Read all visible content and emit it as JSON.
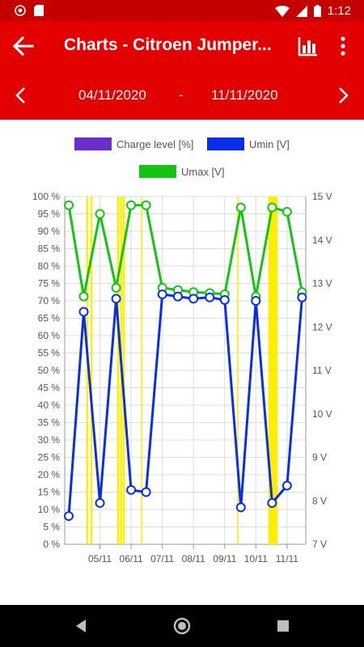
{
  "status_bar": {
    "time": "1:12"
  },
  "app_bar": {
    "title": "Charts - Citroen Jumper..."
  },
  "date_range": {
    "from": "04/11/2020",
    "separator": "-",
    "to": "11/11/2020"
  },
  "colors": {
    "charge": "#6a2fc8",
    "umin": "#0a2ee8",
    "umax": "#14c414",
    "highlight": "#ffee00",
    "appbar": "#e30000"
  },
  "chart_data": {
    "type": "line",
    "legend": [
      {
        "name": "Charge level [%]",
        "color": "#6a2fc8"
      },
      {
        "name": "Umin [V]",
        "color": "#0a2ee8"
      },
      {
        "name": "Umax [V]",
        "color": "#14c414"
      }
    ],
    "legend_position": "top",
    "left_axis": {
      "min": 0,
      "max": 100,
      "step": 5,
      "unit": " %",
      "ticks": [
        "0 %",
        "5 %",
        "10 %",
        "15 %",
        "20 %",
        "25 %",
        "30 %",
        "35 %",
        "40 %",
        "45 %",
        "50 %",
        "55 %",
        "60 %",
        "65 %",
        "70 %",
        "75 %",
        "80 %",
        "85 %",
        "90 %",
        "95 %",
        "100 %"
      ]
    },
    "right_axis": {
      "min": 7,
      "max": 15,
      "step": 1,
      "ticks": [
        "7 V",
        "8 V",
        "9 V",
        "10 V",
        "11 V",
        "12 V",
        "13 V",
        "14 V",
        "15 V"
      ]
    },
    "x_axis": {
      "min": 0,
      "max": 7.6,
      "ticks": [
        {
          "x": 1.0,
          "label": "05/11"
        },
        {
          "x": 2.0,
          "label": "06/11"
        },
        {
          "x": 3.0,
          "label": "07/11"
        },
        {
          "x": 4.0,
          "label": "08/11"
        },
        {
          "x": 5.0,
          "label": "09/11"
        },
        {
          "x": 6.0,
          "label": "10/11"
        },
        {
          "x": 7.0,
          "label": "11/11"
        }
      ]
    },
    "grid": true,
    "series": [
      {
        "name": "Umax [V]",
        "axis": "right",
        "points": [
          [
            0.0,
            14.8
          ],
          [
            0.48,
            12.7
          ],
          [
            1.0,
            14.6
          ],
          [
            1.52,
            12.9
          ],
          [
            2.0,
            14.8
          ],
          [
            2.48,
            14.8
          ],
          [
            3.0,
            12.9
          ],
          [
            3.5,
            12.85
          ],
          [
            4.0,
            12.8
          ],
          [
            4.52,
            12.78
          ],
          [
            5.0,
            12.75
          ],
          [
            5.52,
            14.75
          ],
          [
            6.0,
            12.7
          ],
          [
            6.52,
            14.75
          ],
          [
            7.0,
            14.65
          ],
          [
            7.48,
            12.8
          ]
        ]
      },
      {
        "name": "Umin [V]",
        "axis": "right",
        "points": [
          [
            0.0,
            7.65
          ],
          [
            0.48,
            12.35
          ],
          [
            1.0,
            7.95
          ],
          [
            1.52,
            12.65
          ],
          [
            2.0,
            8.25
          ],
          [
            2.48,
            8.2
          ],
          [
            3.0,
            12.75
          ],
          [
            3.5,
            12.7
          ],
          [
            4.0,
            12.65
          ],
          [
            4.52,
            12.68
          ],
          [
            5.0,
            12.62
          ],
          [
            5.52,
            7.85
          ],
          [
            6.0,
            12.6
          ],
          [
            6.52,
            7.95
          ],
          [
            7.0,
            8.35
          ],
          [
            7.48,
            12.68
          ]
        ]
      }
    ],
    "highlight_bands": [
      [
        0.56,
        0.62
      ],
      [
        0.7,
        0.76
      ],
      [
        1.55,
        1.62
      ],
      [
        1.65,
        1.72
      ],
      [
        1.74,
        1.8
      ],
      [
        2.32,
        2.36
      ],
      [
        5.4,
        5.44
      ],
      [
        6.4,
        6.7
      ]
    ]
  }
}
